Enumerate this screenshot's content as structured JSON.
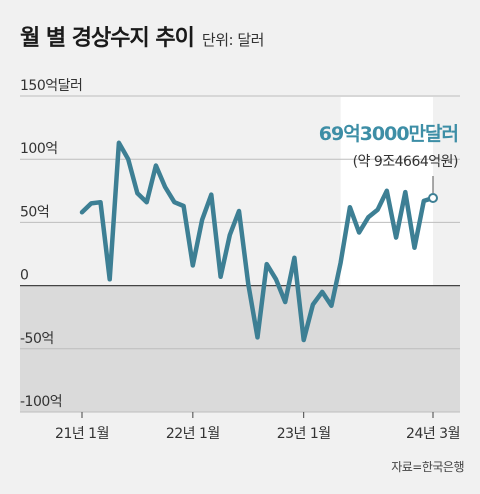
{
  "title": "월 별 경상수지 추이",
  "unit_label": "단위: 달러",
  "source": "자료=한국은행",
  "colors": {
    "line": "#3d7f94",
    "negative_band": "#dadada",
    "annotation": "#3d8ea6"
  },
  "chart_data": {
    "type": "line",
    "title": "월 별 경상수지 추이",
    "ylabel": "",
    "xlabel": "",
    "ylim": [
      -100,
      150
    ],
    "y_ticks": [
      {
        "value": 150,
        "label": "150억달러"
      },
      {
        "value": 100,
        "label": "100억"
      },
      {
        "value": 50,
        "label": "50억"
      },
      {
        "value": 0,
        "label": "0"
      },
      {
        "value": -50,
        "label": "-50억"
      },
      {
        "value": -100,
        "label": "-100억"
      }
    ],
    "x_ticks": [
      {
        "index": 0,
        "label": "21년 1월"
      },
      {
        "index": 12,
        "label": "22년 1월"
      },
      {
        "index": 24,
        "label": "23년 1월"
      },
      {
        "index": 38,
        "label": "24년 3월"
      }
    ],
    "x_start": "2021-01",
    "x_end": "2024-03",
    "grid": true,
    "series": [
      {
        "values": [
          58,
          65,
          66,
          5,
          113,
          100,
          73,
          66,
          95,
          78,
          66,
          63,
          16,
          52,
          72,
          7,
          40,
          59,
          1,
          -41,
          17,
          5,
          -13,
          22,
          -43,
          -15,
          -5,
          -16,
          18,
          62,
          42,
          54,
          60,
          75,
          38,
          74,
          30,
          67,
          69.3
        ]
      }
    ],
    "annotation": {
      "label": "69억3000만달러",
      "sublabel": "(약 9조4664억원)",
      "index": 38,
      "value": 69.3
    }
  }
}
